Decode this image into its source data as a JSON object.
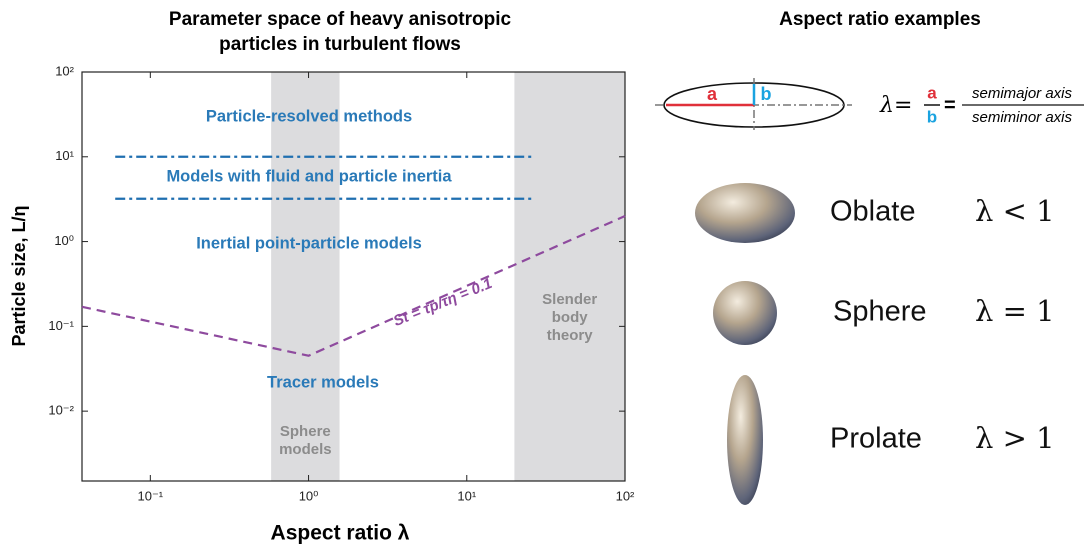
{
  "chart_data": {
    "type": "line",
    "title": [
      "Parameter space of heavy anisotropic",
      "particles in turbulent flows"
    ],
    "xlabel": "Aspect ratio λ",
    "ylabel": "Particle size, L/η",
    "xscale": "log",
    "yscale": "log",
    "xlim": [
      0.037,
      100
    ],
    "ylim": [
      0.0015,
      100
    ],
    "xticks": [
      {
        "value": 0.1,
        "label": "10⁻¹"
      },
      {
        "value": 1,
        "label": "10⁰"
      },
      {
        "value": 10,
        "label": "10¹"
      },
      {
        "value": 100,
        "label": "10²"
      }
    ],
    "yticks": [
      {
        "value": 0.01,
        "label": "10⁻²"
      },
      {
        "value": 0.1,
        "label": "10⁻¹"
      },
      {
        "value": 1,
        "label": "10⁰"
      },
      {
        "value": 10,
        "label": "10¹"
      },
      {
        "value": 100,
        "label": "10²"
      }
    ],
    "bands": [
      {
        "x": [
          0.58,
          1.57
        ],
        "label": [
          "Sphere",
          "models"
        ],
        "color": "#dcdcde"
      },
      {
        "x": [
          20,
          100
        ],
        "label": [
          "Slender",
          "body",
          "theory"
        ],
        "color": "#dcdcde"
      }
    ],
    "series": [
      {
        "name": "St = τp/τη = 0.1",
        "color": "#8e4a9e",
        "style": "dashed",
        "x": [
          0.037,
          1,
          100
        ],
        "values": [
          0.17,
          0.045,
          2
        ]
      },
      {
        "color": "#1f6fb0",
        "style": "dashdot",
        "x": [
          0.06,
          26
        ],
        "values": [
          10,
          10
        ]
      },
      {
        "color": "#1f6fb0",
        "style": "dashdot",
        "x": [
          0.06,
          26
        ],
        "values": [
          3.2,
          3.2
        ]
      }
    ],
    "regions": [
      "Particle-resolved methods",
      "Models with fluid and particle inertia",
      "Inertial point-particle models",
      "Tracer models"
    ]
  },
  "aspect_panel": {
    "title": "Aspect ratio examples",
    "diagram": {
      "a": "a",
      "b": "b",
      "lhs": "λ=",
      "numerator": "a",
      "denominator": "b",
      "equals": "=",
      "top": "semimajor axis",
      "bottom": "semiminor axis"
    },
    "examples": [
      {
        "name": "Oblate",
        "relation": "λ < 1"
      },
      {
        "name": "Sphere",
        "relation": "λ = 1"
      },
      {
        "name": "Prolate",
        "relation": "λ > 1"
      }
    ]
  }
}
